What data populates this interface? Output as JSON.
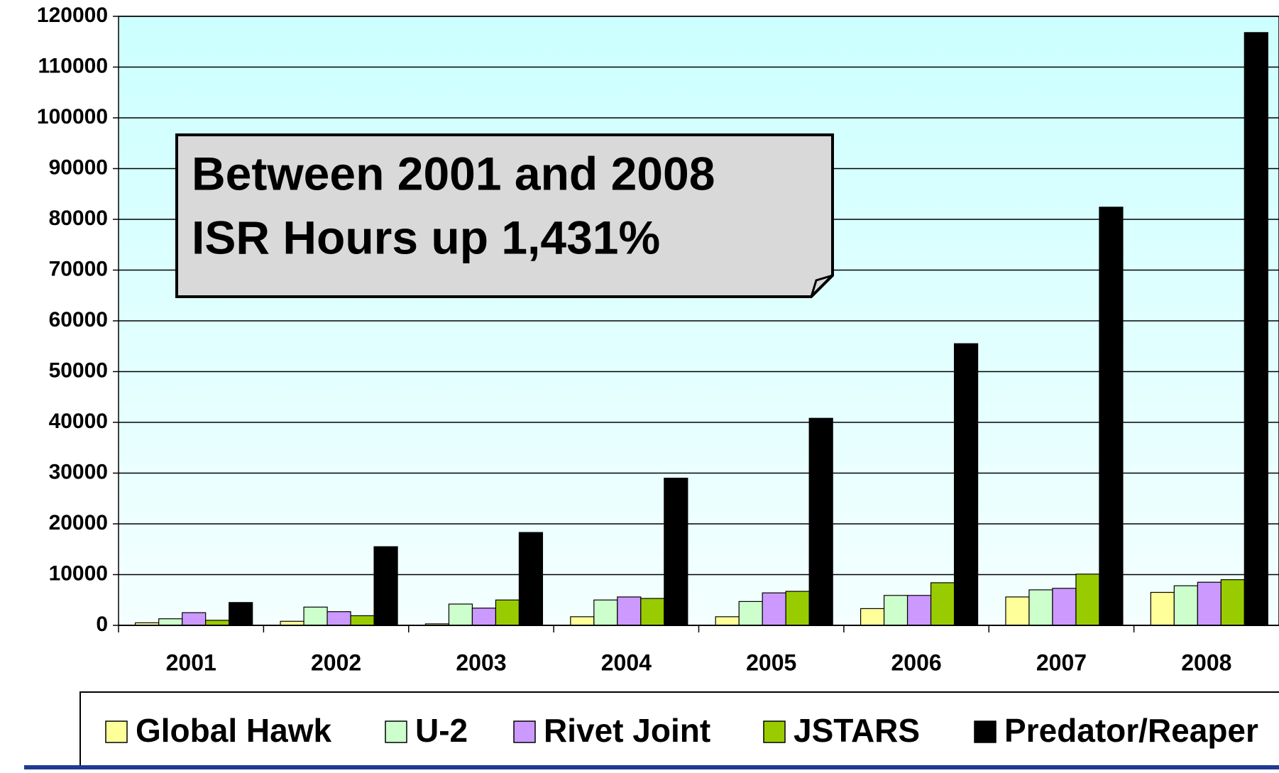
{
  "chart_data": {
    "type": "bar",
    "annotations": [
      "Between 2001 and 2008",
      "ISR Hours up 1,431%"
    ],
    "categories": [
      "2001",
      "2002",
      "2003",
      "2004",
      "2005",
      "2006",
      "2007",
      "2008"
    ],
    "series": [
      {
        "name": "Global Hawk",
        "color": "#ffff99",
        "values": [
          500,
          800,
          300,
          1700,
          1700,
          3300,
          5600,
          6500
        ]
      },
      {
        "name": "U-2",
        "color": "#ccffcc",
        "values": [
          1300,
          3600,
          4200,
          5000,
          4700,
          5900,
          7000,
          7800
        ]
      },
      {
        "name": "Rivet Joint",
        "color": "#cc99ff",
        "values": [
          2500,
          2700,
          3400,
          5600,
          6400,
          5900,
          7300,
          8500
        ]
      },
      {
        "name": "JSTARS",
        "color": "#99cc00",
        "values": [
          1000,
          1900,
          5000,
          5300,
          6700,
          8400,
          10100,
          9000
        ]
      },
      {
        "name": "Predator/Reaper",
        "color": "#000000",
        "values": [
          4500,
          15500,
          18300,
          29000,
          40800,
          55500,
          82400,
          116800
        ]
      }
    ],
    "ylim": [
      0,
      120000
    ],
    "yticks": [
      0,
      10000,
      20000,
      30000,
      40000,
      50000,
      60000,
      70000,
      80000,
      90000,
      100000,
      110000,
      120000
    ],
    "grid": true,
    "legend": "bottom"
  }
}
